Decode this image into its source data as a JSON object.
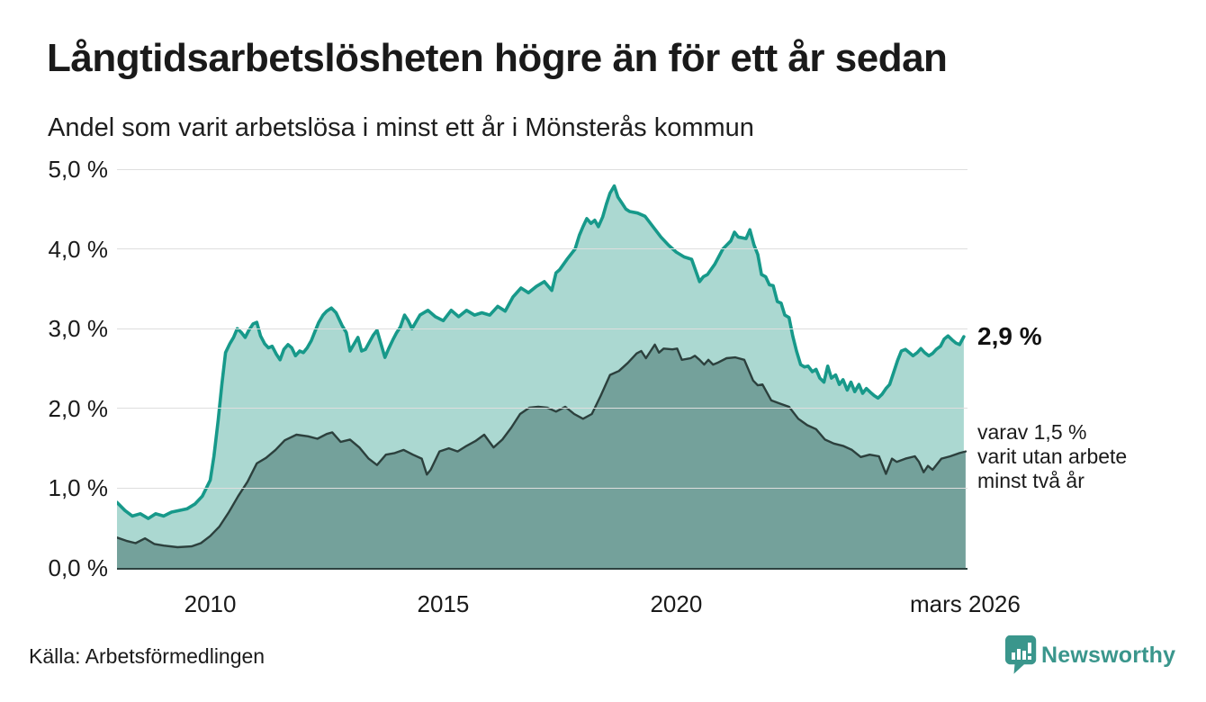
{
  "header": {
    "title": "Långtidsarbetslösheten högre än för ett år sedan",
    "subtitle": "Andel som varit arbetslösa i minst ett år i Mönsterås kommun"
  },
  "annotations": {
    "end_value": "2,9 %",
    "secondary": "varav 1,5 %\nvarit utan arbete\nminst två år"
  },
  "footer": {
    "source": "Källa: Arbetsförmedlingen",
    "brand": "Newsworthy"
  },
  "colors": {
    "primary_line": "#17998a",
    "primary_fill": "#abd8d1",
    "secondary_line": "#2c403d",
    "secondary_fill": "#74a19b",
    "grid": "#dedede",
    "axis_baseline": "#2d4240",
    "text": "#1a1a1a",
    "brand_teal": "#3a968c"
  },
  "chart_data": {
    "type": "area",
    "title": "Långtidsarbetslösheten högre än för ett år sedan",
    "subtitle": "Andel som varit arbetslösa i minst ett år i Mönsterås kommun",
    "xlabel": "",
    "ylabel": "",
    "x_range": [
      2008,
      2026.25
    ],
    "y_range": [
      0,
      5
    ],
    "grid": true,
    "legend_position": "right-annotations",
    "y_ticks": [
      {
        "value": 5,
        "label": "5,0 %"
      },
      {
        "value": 4,
        "label": "4,0 %"
      },
      {
        "value": 3,
        "label": "3,0 %"
      },
      {
        "value": 2,
        "label": "2,0 %"
      },
      {
        "value": 1,
        "label": "1,0 %"
      },
      {
        "value": 0,
        "label": "0,0 %"
      }
    ],
    "x_ticks": [
      {
        "year": 2010,
        "label": "2010"
      },
      {
        "year": 2015,
        "label": "2015"
      },
      {
        "year": 2020,
        "label": "2020"
      },
      {
        "year": 2026.2,
        "label": "mars 2026"
      }
    ],
    "series": [
      {
        "name": "Arbetslösa minst ett år",
        "end_label": "2,9 %",
        "line_color": "#17998a",
        "fill_color": "#abd8d1",
        "line_width": 3.6,
        "points": [
          [
            2008.0,
            0.82
          ],
          [
            2008.17,
            0.72
          ],
          [
            2008.33,
            0.65
          ],
          [
            2008.5,
            0.68
          ],
          [
            2008.67,
            0.62
          ],
          [
            2008.83,
            0.68
          ],
          [
            2009.0,
            0.65
          ],
          [
            2009.17,
            0.7
          ],
          [
            2009.33,
            0.72
          ],
          [
            2009.5,
            0.74
          ],
          [
            2009.67,
            0.8
          ],
          [
            2009.83,
            0.9
          ],
          [
            2010.0,
            1.1
          ],
          [
            2010.08,
            1.4
          ],
          [
            2010.17,
            1.85
          ],
          [
            2010.25,
            2.3
          ],
          [
            2010.33,
            2.7
          ],
          [
            2010.42,
            2.81
          ],
          [
            2010.5,
            2.89
          ],
          [
            2010.58,
            3.0
          ],
          [
            2010.67,
            2.95
          ],
          [
            2010.75,
            2.89
          ],
          [
            2010.83,
            2.98
          ],
          [
            2010.92,
            3.06
          ],
          [
            2011.0,
            3.08
          ],
          [
            2011.08,
            2.91
          ],
          [
            2011.17,
            2.81
          ],
          [
            2011.25,
            2.76
          ],
          [
            2011.33,
            2.78
          ],
          [
            2011.42,
            2.68
          ],
          [
            2011.5,
            2.61
          ],
          [
            2011.58,
            2.74
          ],
          [
            2011.67,
            2.8
          ],
          [
            2011.75,
            2.76
          ],
          [
            2011.83,
            2.66
          ],
          [
            2011.92,
            2.72
          ],
          [
            2012.0,
            2.7
          ],
          [
            2012.08,
            2.76
          ],
          [
            2012.17,
            2.85
          ],
          [
            2012.25,
            2.97
          ],
          [
            2012.33,
            3.08
          ],
          [
            2012.42,
            3.17
          ],
          [
            2012.5,
            3.22
          ],
          [
            2012.6,
            3.26
          ],
          [
            2012.7,
            3.2
          ],
          [
            2012.83,
            3.04
          ],
          [
            2012.92,
            2.95
          ],
          [
            2013.0,
            2.72
          ],
          [
            2013.08,
            2.8
          ],
          [
            2013.17,
            2.89
          ],
          [
            2013.25,
            2.72
          ],
          [
            2013.33,
            2.74
          ],
          [
            2013.5,
            2.92
          ],
          [
            2013.58,
            2.98
          ],
          [
            2013.75,
            2.64
          ],
          [
            2013.83,
            2.75
          ],
          [
            2013.92,
            2.86
          ],
          [
            2014.0,
            2.95
          ],
          [
            2014.08,
            3.02
          ],
          [
            2014.17,
            3.17
          ],
          [
            2014.25,
            3.1
          ],
          [
            2014.33,
            3.0
          ],
          [
            2014.5,
            3.17
          ],
          [
            2014.67,
            3.23
          ],
          [
            2014.83,
            3.15
          ],
          [
            2015.0,
            3.1
          ],
          [
            2015.17,
            3.23
          ],
          [
            2015.33,
            3.15
          ],
          [
            2015.5,
            3.23
          ],
          [
            2015.67,
            3.17
          ],
          [
            2015.83,
            3.2
          ],
          [
            2016.0,
            3.17
          ],
          [
            2016.17,
            3.28
          ],
          [
            2016.33,
            3.22
          ],
          [
            2016.5,
            3.4
          ],
          [
            2016.67,
            3.51
          ],
          [
            2016.83,
            3.45
          ],
          [
            2017.0,
            3.53
          ],
          [
            2017.17,
            3.59
          ],
          [
            2017.33,
            3.48
          ],
          [
            2017.42,
            3.7
          ],
          [
            2017.5,
            3.74
          ],
          [
            2017.67,
            3.88
          ],
          [
            2017.83,
            4.0
          ],
          [
            2017.92,
            4.17
          ],
          [
            2018.0,
            4.28
          ],
          [
            2018.08,
            4.38
          ],
          [
            2018.17,
            4.32
          ],
          [
            2018.25,
            4.36
          ],
          [
            2018.33,
            4.28
          ],
          [
            2018.42,
            4.4
          ],
          [
            2018.5,
            4.56
          ],
          [
            2018.58,
            4.7
          ],
          [
            2018.67,
            4.79
          ],
          [
            2018.75,
            4.65
          ],
          [
            2018.83,
            4.58
          ],
          [
            2018.92,
            4.5
          ],
          [
            2019.0,
            4.47
          ],
          [
            2019.17,
            4.45
          ],
          [
            2019.33,
            4.41
          ],
          [
            2019.5,
            4.28
          ],
          [
            2019.67,
            4.15
          ],
          [
            2019.83,
            4.05
          ],
          [
            2020.0,
            3.96
          ],
          [
            2020.17,
            3.9
          ],
          [
            2020.33,
            3.87
          ],
          [
            2020.5,
            3.59
          ],
          [
            2020.58,
            3.65
          ],
          [
            2020.67,
            3.68
          ],
          [
            2020.83,
            3.81
          ],
          [
            2021.0,
            4.0
          ],
          [
            2021.17,
            4.1
          ],
          [
            2021.25,
            4.21
          ],
          [
            2021.33,
            4.15
          ],
          [
            2021.5,
            4.13
          ],
          [
            2021.58,
            4.24
          ],
          [
            2021.67,
            4.05
          ],
          [
            2021.75,
            3.93
          ],
          [
            2021.83,
            3.68
          ],
          [
            2021.92,
            3.65
          ],
          [
            2022.0,
            3.55
          ],
          [
            2022.08,
            3.54
          ],
          [
            2022.17,
            3.34
          ],
          [
            2022.25,
            3.32
          ],
          [
            2022.33,
            3.17
          ],
          [
            2022.42,
            3.14
          ],
          [
            2022.5,
            2.91
          ],
          [
            2022.58,
            2.72
          ],
          [
            2022.67,
            2.55
          ],
          [
            2022.75,
            2.52
          ],
          [
            2022.83,
            2.53
          ],
          [
            2022.92,
            2.46
          ],
          [
            2023.0,
            2.49
          ],
          [
            2023.08,
            2.38
          ],
          [
            2023.17,
            2.33
          ],
          [
            2023.25,
            2.53
          ],
          [
            2023.33,
            2.38
          ],
          [
            2023.42,
            2.42
          ],
          [
            2023.5,
            2.3
          ],
          [
            2023.58,
            2.36
          ],
          [
            2023.67,
            2.23
          ],
          [
            2023.75,
            2.33
          ],
          [
            2023.83,
            2.21
          ],
          [
            2023.92,
            2.3
          ],
          [
            2024.0,
            2.19
          ],
          [
            2024.08,
            2.25
          ],
          [
            2024.17,
            2.2
          ],
          [
            2024.25,
            2.16
          ],
          [
            2024.33,
            2.13
          ],
          [
            2024.42,
            2.18
          ],
          [
            2024.5,
            2.25
          ],
          [
            2024.58,
            2.3
          ],
          [
            2024.67,
            2.46
          ],
          [
            2024.75,
            2.6
          ],
          [
            2024.83,
            2.72
          ],
          [
            2024.92,
            2.74
          ],
          [
            2025.0,
            2.7
          ],
          [
            2025.08,
            2.66
          ],
          [
            2025.17,
            2.7
          ],
          [
            2025.25,
            2.75
          ],
          [
            2025.33,
            2.7
          ],
          [
            2025.42,
            2.66
          ],
          [
            2025.5,
            2.69
          ],
          [
            2025.58,
            2.74
          ],
          [
            2025.67,
            2.78
          ],
          [
            2025.75,
            2.87
          ],
          [
            2025.83,
            2.91
          ],
          [
            2025.92,
            2.86
          ],
          [
            2026.0,
            2.82
          ],
          [
            2026.08,
            2.8
          ],
          [
            2026.17,
            2.9
          ]
        ]
      },
      {
        "name": "Varav utan arbete minst två år",
        "end_label": "varav 1,5 %",
        "line_color": "#2c403d",
        "fill_color": "#74a19b",
        "line_width": 2.4,
        "points": [
          [
            2008.0,
            0.38
          ],
          [
            2008.2,
            0.34
          ],
          [
            2008.4,
            0.31
          ],
          [
            2008.6,
            0.37
          ],
          [
            2008.8,
            0.3
          ],
          [
            2009.0,
            0.28
          ],
          [
            2009.3,
            0.26
          ],
          [
            2009.6,
            0.27
          ],
          [
            2009.8,
            0.31
          ],
          [
            2010.0,
            0.4
          ],
          [
            2010.2,
            0.52
          ],
          [
            2010.4,
            0.7
          ],
          [
            2010.6,
            0.9
          ],
          [
            2010.8,
            1.08
          ],
          [
            2011.0,
            1.31
          ],
          [
            2011.2,
            1.38
          ],
          [
            2011.4,
            1.48
          ],
          [
            2011.6,
            1.6
          ],
          [
            2011.85,
            1.67
          ],
          [
            2012.1,
            1.65
          ],
          [
            2012.3,
            1.62
          ],
          [
            2012.5,
            1.68
          ],
          [
            2012.62,
            1.7
          ],
          [
            2012.8,
            1.58
          ],
          [
            2013.0,
            1.61
          ],
          [
            2013.2,
            1.51
          ],
          [
            2013.4,
            1.37
          ],
          [
            2013.58,
            1.29
          ],
          [
            2013.77,
            1.42
          ],
          [
            2013.96,
            1.44
          ],
          [
            2014.15,
            1.48
          ],
          [
            2014.35,
            1.42
          ],
          [
            2014.54,
            1.37
          ],
          [
            2014.65,
            1.17
          ],
          [
            2014.73,
            1.23
          ],
          [
            2014.92,
            1.46
          ],
          [
            2015.12,
            1.5
          ],
          [
            2015.31,
            1.46
          ],
          [
            2015.5,
            1.53
          ],
          [
            2015.69,
            1.59
          ],
          [
            2015.88,
            1.67
          ],
          [
            2016.08,
            1.51
          ],
          [
            2016.27,
            1.61
          ],
          [
            2016.46,
            1.76
          ],
          [
            2016.65,
            1.93
          ],
          [
            2016.85,
            2.01
          ],
          [
            2017.04,
            2.02
          ],
          [
            2017.23,
            2.01
          ],
          [
            2017.42,
            1.96
          ],
          [
            2017.62,
            2.02
          ],
          [
            2017.81,
            1.93
          ],
          [
            2018.0,
            1.87
          ],
          [
            2018.19,
            1.93
          ],
          [
            2018.38,
            2.16
          ],
          [
            2018.58,
            2.42
          ],
          [
            2018.77,
            2.47
          ],
          [
            2018.96,
            2.57
          ],
          [
            2019.15,
            2.69
          ],
          [
            2019.25,
            2.72
          ],
          [
            2019.35,
            2.63
          ],
          [
            2019.54,
            2.8
          ],
          [
            2019.63,
            2.7
          ],
          [
            2019.73,
            2.75
          ],
          [
            2019.92,
            2.74
          ],
          [
            2020.02,
            2.75
          ],
          [
            2020.12,
            2.61
          ],
          [
            2020.31,
            2.63
          ],
          [
            2020.4,
            2.66
          ],
          [
            2020.5,
            2.61
          ],
          [
            2020.6,
            2.55
          ],
          [
            2020.69,
            2.61
          ],
          [
            2020.79,
            2.55
          ],
          [
            2020.88,
            2.57
          ],
          [
            2021.08,
            2.63
          ],
          [
            2021.27,
            2.64
          ],
          [
            2021.46,
            2.61
          ],
          [
            2021.65,
            2.35
          ],
          [
            2021.75,
            2.29
          ],
          [
            2021.85,
            2.3
          ],
          [
            2022.04,
            2.1
          ],
          [
            2022.23,
            2.06
          ],
          [
            2022.42,
            2.02
          ],
          [
            2022.62,
            1.87
          ],
          [
            2022.81,
            1.79
          ],
          [
            2023.0,
            1.74
          ],
          [
            2023.19,
            1.61
          ],
          [
            2023.38,
            1.56
          ],
          [
            2023.58,
            1.53
          ],
          [
            2023.77,
            1.48
          ],
          [
            2023.96,
            1.39
          ],
          [
            2024.15,
            1.42
          ],
          [
            2024.35,
            1.4
          ],
          [
            2024.5,
            1.18
          ],
          [
            2024.63,
            1.37
          ],
          [
            2024.73,
            1.33
          ],
          [
            2024.92,
            1.37
          ],
          [
            2025.12,
            1.4
          ],
          [
            2025.21,
            1.33
          ],
          [
            2025.31,
            1.2
          ],
          [
            2025.4,
            1.28
          ],
          [
            2025.5,
            1.23
          ],
          [
            2025.69,
            1.37
          ],
          [
            2025.88,
            1.4
          ],
          [
            2026.08,
            1.44
          ],
          [
            2026.21,
            1.46
          ]
        ]
      }
    ]
  }
}
